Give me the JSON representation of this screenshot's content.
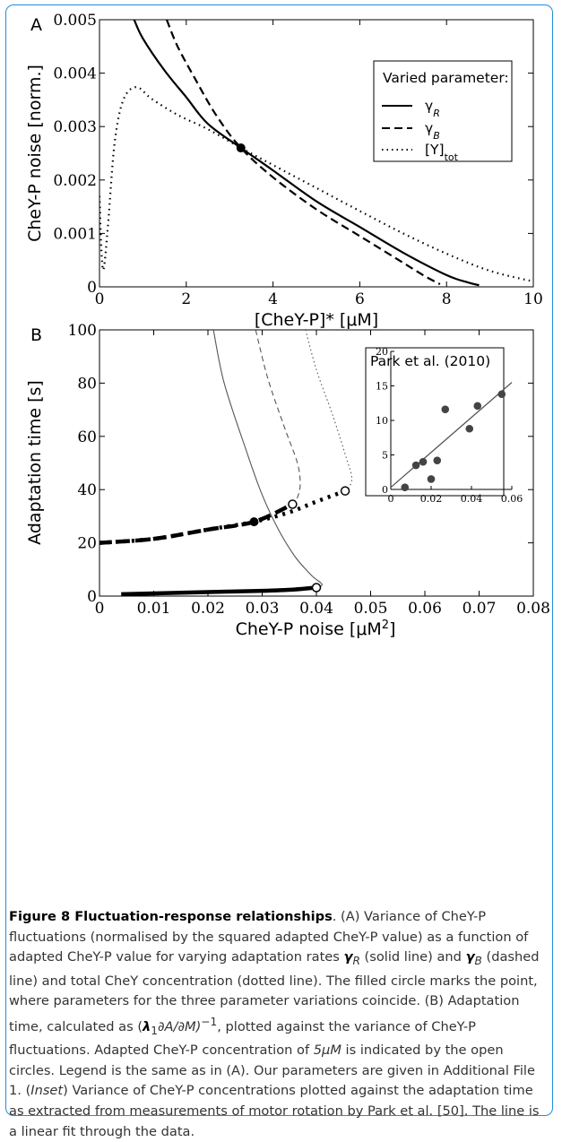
{
  "figure": {
    "caption_title": "Figure 8 Fluctuation-response relationships",
    "caption_parts": {
      "p1": ". (A) Variance of CheY-P fluctuations (normalised by the squared adapted CheY-P value) as a function of adapted CheY-P value for varying adaptation rates ",
      "gR": "γ",
      "gR_sub": "R",
      "p2": " (solid line) and ",
      "gB": "γ",
      "gB_sub": "B",
      "p3": " (dashed line) and total CheY concentration (dotted line). The filled circle marks the point, where parameters for the three parameter variations coincide. (B) Adaptation time, calculated as (",
      "lam": "λ",
      "lam_sub": "1",
      "p4": "∂A/∂M)",
      "p4_sup": "−1",
      "p5": ", plotted against the variance of CheY-P fluctuations. Adapted CheY-P concentration of ",
      "conc": "5μM",
      "p6": " is indicated by the open circles. Legend is the same as in (A). Our parameters are given in Additional File 1. (",
      "inset_word": "Inset",
      "p7": ") Variance of CheY-P concentrations plotted against the adaptation time as extracted from measurements of motor rotation by Park et al. [50]. The line is a linear fit through the data."
    }
  },
  "panelA": {
    "panel_label": "A",
    "ylabel": "CheY-P noise [norm.]",
    "xlabel": "[CheY-P]* [μM]",
    "legend_title": "Varied parameter:",
    "legend_items": [
      {
        "greek": "γ",
        "sub": "R",
        "sup": "",
        "style": "solid"
      },
      {
        "greek": "γ",
        "sub": "B",
        "sup": "",
        "style": "dashed"
      },
      {
        "greek": "[Y]",
        "sub": "tot",
        "sup": "",
        "style": "dotted"
      }
    ]
  },
  "panelB": {
    "panel_label": "B",
    "ylabel": "Adaptation time [s]",
    "xlabel_main": "CheY-P noise [μM",
    "xlabel_sup": "2",
    "xlabel_end": "]",
    "inset_title": "Park et al. (2010)"
  },
  "chart_data": [
    {
      "type": "line",
      "panel": "A",
      "title": "",
      "xlabel": "[CheY-P]* [μM]",
      "ylabel": "CheY-P noise [norm.]",
      "xlim": [
        0,
        10
      ],
      "ylim": [
        0,
        0.005
      ],
      "xticks": [
        "0",
        "2",
        "4",
        "6",
        "8",
        "10"
      ],
      "yticks": [
        "0",
        "0.001",
        "0.002",
        "0.003",
        "0.004",
        "0.005"
      ],
      "legend_position": "top-right",
      "series": [
        {
          "name": "γR",
          "style": "solid",
          "x": [
            0.8,
            1.0,
            1.5,
            2.0,
            2.5,
            3.26,
            4.0,
            5.0,
            6.0,
            7.0,
            8.0,
            8.5,
            8.75
          ],
          "y": [
            0.005,
            0.00465,
            0.00405,
            0.00355,
            0.00305,
            0.0026,
            0.00218,
            0.0016,
            0.00112,
            0.00064,
            0.00022,
            8e-05,
            3e-05
          ]
        },
        {
          "name": "γB",
          "style": "dashed",
          "x": [
            1.55,
            1.8,
            2.2,
            2.7,
            3.26,
            4.0,
            5.0,
            6.0,
            7.0,
            7.5,
            7.85
          ],
          "y": [
            0.005,
            0.0045,
            0.0039,
            0.0032,
            0.0026,
            0.00205,
            0.00145,
            0.00095,
            0.00045,
            0.0002,
            5e-05
          ]
        },
        {
          "name": "[Y]tot",
          "style": "dotted",
          "x": [
            0.0,
            0.05,
            0.1,
            0.2,
            0.35,
            0.55,
            0.85,
            1.2,
            1.8,
            2.5,
            3.26,
            4.0,
            5.0,
            6.0,
            7.0,
            8.0,
            9.0,
            10.0
          ],
          "y": [
            0.0017,
            0.0006,
            0.00035,
            0.0012,
            0.0027,
            0.0035,
            0.00374,
            0.00352,
            0.00322,
            0.00295,
            0.0026,
            0.00228,
            0.00185,
            0.00142,
            0.001,
            0.00062,
            0.0003,
            0.0001
          ]
        }
      ],
      "annotations": [
        {
          "kind": "filled-circle",
          "x": 3.26,
          "y": 0.0026
        }
      ]
    },
    {
      "type": "line",
      "panel": "B",
      "title": "",
      "xlabel": "CheY-P noise [μM²]",
      "ylabel": "Adaptation time [s]",
      "xlim": [
        0,
        0.08
      ],
      "ylim": [
        0,
        100
      ],
      "xticks": [
        "0",
        "0.01",
        "0.02",
        "0.03",
        "0.04",
        "0.05",
        "0.06",
        "0.07",
        "0.08"
      ],
      "yticks": [
        "0",
        "20",
        "40",
        "60",
        "80",
        "100"
      ],
      "series": [
        {
          "name": "γR thin",
          "style": "solid-thin",
          "x": [
            0.021,
            0.023,
            0.027,
            0.03,
            0.033,
            0.036,
            0.039,
            0.0408,
            0.041,
            0.0405,
            0.04
          ],
          "y": [
            100,
            80,
            55,
            38,
            25,
            15,
            8,
            5,
            4,
            3.5,
            3.2
          ]
        },
        {
          "name": "γR thick",
          "style": "solid-thick",
          "x": [
            0.004,
            0.01,
            0.02,
            0.03,
            0.036,
            0.04
          ],
          "y": [
            0.7,
            1.0,
            1.5,
            2.0,
            2.5,
            3.2
          ]
        },
        {
          "name": "γB thin",
          "style": "dashed-thin",
          "x": [
            0.0288,
            0.031,
            0.034,
            0.0365,
            0.037,
            0.0365,
            0.0356
          ],
          "y": [
            100,
            82,
            64,
            50,
            42,
            37,
            34.5
          ]
        },
        {
          "name": "γB thick",
          "style": "dashed-thick",
          "x": [
            0.0,
            0.01,
            0.02,
            0.0285,
            0.0356
          ],
          "y": [
            20,
            21.5,
            25,
            27.9,
            34.5
          ]
        },
        {
          "name": "[Y]tot thin",
          "style": "dotted-thin",
          "x": [
            0.038,
            0.04,
            0.043,
            0.0455,
            0.0465,
            0.0462,
            0.0453
          ],
          "y": [
            100,
            85,
            68,
            52,
            45,
            41.5,
            39.5
          ]
        },
        {
          "name": "[Y]tot thick",
          "style": "dotted-thick",
          "x": [
            0.0,
            0.01,
            0.02,
            0.0285,
            0.035,
            0.04,
            0.0453
          ],
          "y": [
            20,
            21.5,
            25,
            27.9,
            31.5,
            35.5,
            39.5
          ]
        }
      ],
      "annotations": [
        {
          "kind": "filled-circle",
          "x": 0.0285,
          "y": 27.9
        },
        {
          "kind": "open-circle",
          "x": 0.04,
          "y": 3.2
        },
        {
          "kind": "open-circle",
          "x": 0.0356,
          "y": 34.5
        },
        {
          "kind": "open-circle",
          "x": 0.0453,
          "y": 39.5
        }
      ]
    },
    {
      "type": "scatter",
      "panel": "B inset",
      "title": "Park et al. (2010)",
      "xlim": [
        0,
        0.06
      ],
      "ylim": [
        0,
        20
      ],
      "xticks": [
        "0",
        "0.02",
        "0.04",
        "0.06"
      ],
      "yticks": [
        "0",
        "5",
        "10",
        "15",
        "20"
      ],
      "points": [
        [
          0.007,
          0.3
        ],
        [
          0.0125,
          3.5
        ],
        [
          0.016,
          4.0
        ],
        [
          0.02,
          1.5
        ],
        [
          0.023,
          4.2
        ],
        [
          0.027,
          11.6
        ],
        [
          0.039,
          8.8
        ],
        [
          0.043,
          12.1
        ],
        [
          0.055,
          13.8
        ]
      ],
      "fit_line": {
        "x": [
          0,
          0.06
        ],
        "y": [
          0.3,
          15.5
        ]
      }
    }
  ]
}
